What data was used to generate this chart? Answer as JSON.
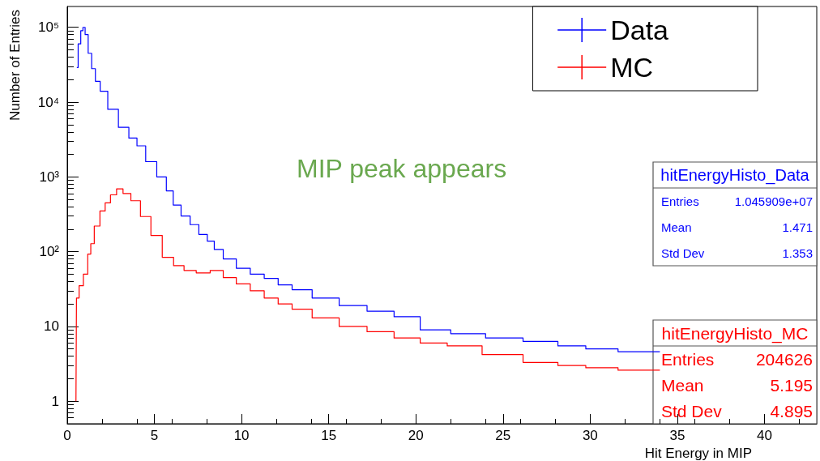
{
  "chart_data": {
    "type": "step",
    "xlabel": "Hit Energy in MIP",
    "ylabel": "Number of Entries",
    "log": "y",
    "xlim": [
      0,
      43
    ],
    "xticks": [
      0,
      5,
      10,
      15,
      20,
      25,
      30,
      35,
      40
    ],
    "ylim": [
      0.5,
      190000
    ],
    "yticks": [
      1,
      10,
      {
        "value": 100,
        "label": "10²"
      },
      {
        "value": 1000,
        "label": "10³"
      },
      {
        "value": 10000,
        "label": "10⁴"
      },
      {
        "value": 100000,
        "label": "10⁵"
      }
    ],
    "grid": false,
    "legend": "top right",
    "series": [
      {
        "name": "Data",
        "color": "#0000ff",
        "x": [
          0.55,
          0.7,
          0.85,
          0.95,
          1.1,
          1.3,
          1.5,
          1.73,
          2.05,
          2.6,
          3.27,
          3.8,
          4.2,
          4.8,
          5.47,
          5.9,
          6.26,
          6.8,
          7.3,
          7.8,
          8.27,
          8.6,
          9.3,
          10.1,
          10.9,
          11.7,
          12.5,
          13.3,
          14.8,
          16.4,
          18,
          19.5,
          21,
          23,
          25,
          27.3,
          29,
          30.5,
          32.7,
          34
        ],
        "values": [
          29000,
          60000,
          90000,
          100000,
          80000,
          45000,
          28000,
          19000,
          14000,
          8000,
          4600,
          3300,
          2600,
          1600,
          1000,
          650,
          420,
          300,
          230,
          170,
          138,
          107,
          80,
          60,
          50,
          44,
          36,
          31,
          24,
          19,
          16,
          13.5,
          9,
          8,
          7,
          6.3,
          5.5,
          5,
          4.6,
          4.6
        ]
      },
      {
        "name": "MC",
        "color": "#ff0000",
        "x": [
          0.5,
          0.56,
          0.8,
          1.05,
          1.3,
          1.4,
          1.7,
          2.05,
          2.3,
          2.66,
          3,
          3.4,
          3.9,
          4.5,
          5.1,
          5.8,
          6.4,
          7,
          7.8,
          8.6,
          9.3,
          10.1,
          10.9,
          11.7,
          12.5,
          13.3,
          14.8,
          16.4,
          18,
          19.5,
          21,
          22.6,
          25,
          27.3,
          29,
          30.5,
          32.7,
          34
        ],
        "values": [
          1,
          24,
          35,
          50,
          93,
          128,
          220,
          350,
          450,
          575,
          690,
          600,
          480,
          295,
          165,
          84,
          65,
          56,
          52,
          56,
          45,
          37,
          30,
          24,
          20,
          17,
          13,
          10,
          8.5,
          7,
          6,
          5.5,
          4.2,
          3.3,
          3,
          2.8,
          2.6,
          2.6
        ]
      }
    ],
    "annotations": [
      "MIP peak appears",
      "hitEnergyHisto_Data",
      "Entries 1.045909e+07",
      "Mean 1.471",
      "Std Dev 1.353",
      "hitEnergyHisto_MC",
      "Entries 204626",
      "Mean 5.195",
      "Std Dev 4.895"
    ]
  }
}
